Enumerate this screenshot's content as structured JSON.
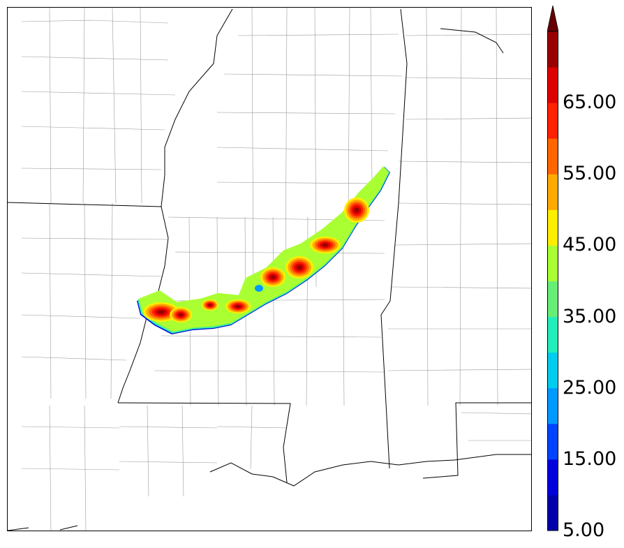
{
  "map": {
    "title": "",
    "field_colors": [
      "#0000aa",
      "#0000dd",
      "#0044ff",
      "#0099ff",
      "#00ccee",
      "#22eebb",
      "#66ee77",
      "#aaff33",
      "#ffee00",
      "#ffaa00",
      "#ff6600",
      "#ff2200",
      "#dd0000",
      "#990000"
    ]
  },
  "colorbar": {
    "levels": [
      5,
      10,
      15,
      20,
      25,
      30,
      35,
      40,
      45,
      50,
      55,
      60,
      65,
      70
    ],
    "labels": [
      "5.00",
      "15.00",
      "25.00",
      "35.00",
      "45.00",
      "55.00",
      "65.00"
    ],
    "colors": [
      "#0000aa",
      "#0000dd",
      "#0044ff",
      "#0099ff",
      "#00ccee",
      "#22eebb",
      "#66ee77",
      "#aaff33",
      "#ffee00",
      "#ffaa00",
      "#ff6600",
      "#ff2200",
      "#dd0000",
      "#990000"
    ],
    "extend": "max",
    "extend_color": "#660000"
  }
}
